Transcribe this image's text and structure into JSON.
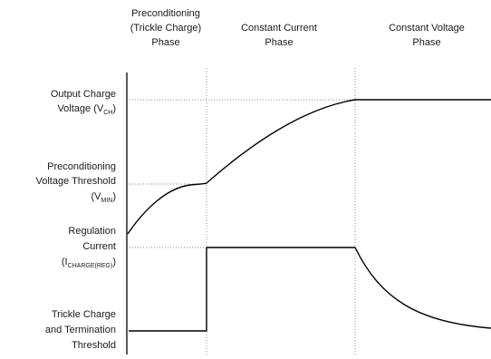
{
  "phases": [
    {
      "lines": [
        "Preconditioning",
        "(Trickle Charge)",
        "Phase"
      ]
    },
    {
      "lines": [
        "Constant Current",
        "Phase"
      ]
    },
    {
      "lines": [
        "Constant Voltage",
        "Phase"
      ]
    }
  ],
  "levels": {
    "vch": {
      "line1": "Output Charge",
      "line2_main": "Voltage (V",
      "line2_sub": "CH",
      "line2_end": ")"
    },
    "vmin": {
      "line1": "Preconditioning",
      "line2": "Voltage Threshold",
      "line3_main": "(V",
      "line3_sub": "MIN",
      "line3_end": ")"
    },
    "ireg": {
      "line1": "Regulation",
      "line2": "Current",
      "line3_main": "(I",
      "line3_sub": "CHARGE(REG)",
      "line3_end": ")"
    },
    "itrickle": {
      "line1": "Trickle Charge",
      "line2": "and Termination",
      "line3": "Threshold"
    }
  },
  "curves": [
    {
      "name": "voltage",
      "color": "#000000"
    },
    {
      "name": "current",
      "color": "#000000"
    }
  ]
}
